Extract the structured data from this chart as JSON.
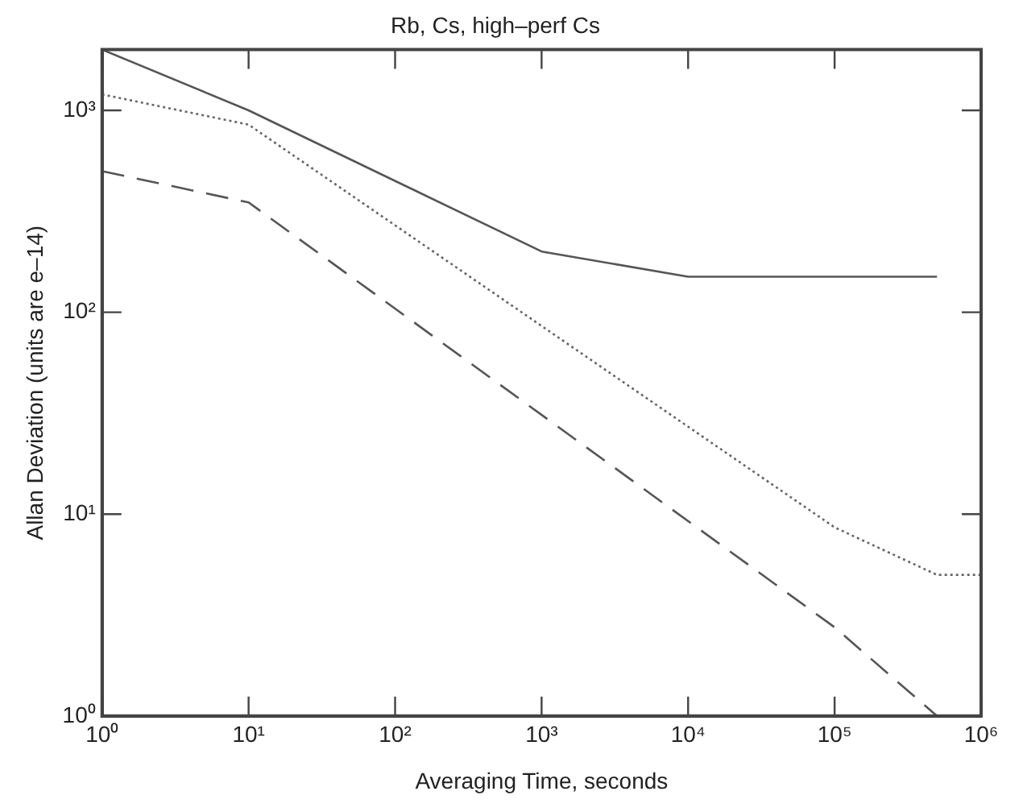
{
  "chart_data": {
    "type": "line",
    "title": "Rb, Cs, high–perf Cs",
    "xlabel": "Averaging Time, seconds",
    "ylabel": "Allan Deviation (units are e–14)",
    "log": "xy",
    "grid": false,
    "legend": false,
    "marker": "none",
    "xlim": [
      1,
      1000000
    ],
    "ylim": [
      1,
      2000
    ],
    "xticks": [
      {
        "value": 1,
        "label": "10⁰"
      },
      {
        "value": 10,
        "label": "10¹"
      },
      {
        "value": 100,
        "label": "10²"
      },
      {
        "value": 1000,
        "label": "10³"
      },
      {
        "value": 10000,
        "label": "10⁴"
      },
      {
        "value": 100000,
        "label": "10⁵"
      },
      {
        "value": 1000000,
        "label": "10⁶"
      }
    ],
    "yticks": [
      {
        "value": 1,
        "label": "10⁰"
      },
      {
        "value": 10,
        "label": "10¹"
      },
      {
        "value": 100,
        "label": "10²"
      },
      {
        "value": 1000,
        "label": "10³"
      }
    ],
    "series": [
      {
        "color": "#555555",
        "line_style": "solid",
        "x": [
          1,
          10,
          1000,
          10000,
          500000
        ],
        "values": [
          2000,
          1000,
          200,
          150,
          150
        ]
      },
      {
        "color": "#666666",
        "line_style": "dotted",
        "x": [
          1,
          10,
          100000,
          500000,
          1000000
        ],
        "values": [
          1200,
          850,
          8.6,
          5,
          5
        ]
      },
      {
        "color": "#555555",
        "line_style": "dashed",
        "x": [
          1,
          10,
          100000,
          500000
        ],
        "values": [
          500,
          350,
          2.75,
          1
        ]
      }
    ]
  }
}
